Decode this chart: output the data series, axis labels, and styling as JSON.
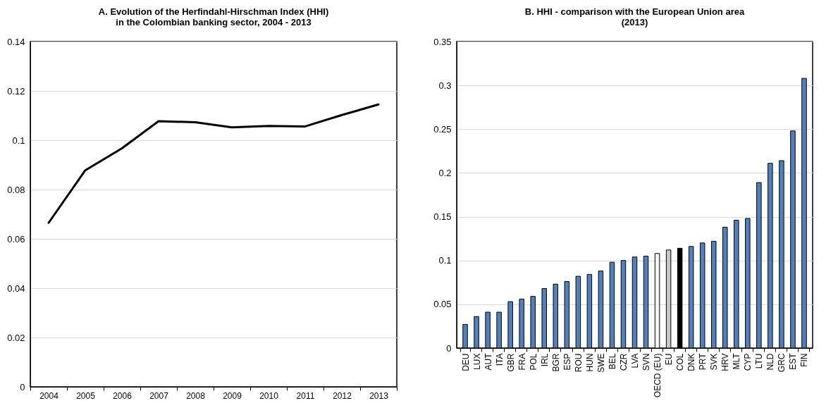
{
  "chart_data": [
    {
      "type": "line",
      "title": "A. Evolution of the Herfindahl-Hirschman Index (HHI)\nin the Colombian banking sector, 2004 - 2013",
      "categories": [
        "2004",
        "2005",
        "2006",
        "2007",
        "2008",
        "2009",
        "2010",
        "2011",
        "2012",
        "2013"
      ],
      "series": [
        {
          "color": "#000000",
          "values": [
            0.0665,
            0.0878,
            0.0967,
            0.1077,
            0.1073,
            0.1052,
            0.1058,
            0.1056,
            0.1102,
            0.1145
          ]
        }
      ],
      "ylim": [
        0,
        0.14
      ],
      "yticks": [
        0,
        0.02,
        0.04,
        0.06,
        0.08,
        0.1,
        0.12,
        0.14
      ],
      "grid": "y"
    },
    {
      "type": "bar",
      "title": "B. HHI - comparison with the European Union area\n(2013)",
      "categories": [
        "DEU",
        "LUX",
        "AUT",
        "ITA",
        "GBR",
        "FRA",
        "POL",
        "IRL",
        "BGR",
        "ESP",
        "ROU",
        "HUN",
        "SWE",
        "BEL",
        "CZR",
        "LVA",
        "SVN",
        "OECD (EU)",
        "EU",
        "COL",
        "DNK",
        "PRT",
        "SVK",
        "HRV",
        "MLT",
        "CYP",
        "LTU",
        "NLD",
        "GRC",
        "EST",
        "FIN"
      ],
      "values": [
        0.027,
        0.036,
        0.041,
        0.041,
        0.053,
        0.056,
        0.059,
        0.068,
        0.073,
        0.076,
        0.082,
        0.084,
        0.088,
        0.098,
        0.1,
        0.104,
        0.105,
        0.108,
        0.112,
        0.114,
        0.116,
        0.12,
        0.122,
        0.138,
        0.146,
        0.148,
        0.189,
        0.211,
        0.214,
        0.248,
        0.308
      ],
      "colors": [
        "#4f81bd",
        "#4f81bd",
        "#4f81bd",
        "#4f81bd",
        "#4f81bd",
        "#4f81bd",
        "#4f81bd",
        "#4f81bd",
        "#4f81bd",
        "#4f81bd",
        "#4f81bd",
        "#4f81bd",
        "#4f81bd",
        "#4f81bd",
        "#4f81bd",
        "#4f81bd",
        "#4f81bd",
        "#f2f2f2",
        "#c8c8c8",
        "#000000",
        "#4f81bd",
        "#4f81bd",
        "#4f81bd",
        "#4f81bd",
        "#4f81bd",
        "#4f81bd",
        "#4f81bd",
        "#4f81bd",
        "#4f81bd",
        "#4f81bd",
        "#4f81bd"
      ],
      "ylim": [
        0,
        0.35
      ],
      "yticks": [
        0,
        0.05,
        0.1,
        0.15,
        0.2,
        0.25,
        0.3,
        0.35
      ],
      "grid": "y"
    }
  ]
}
